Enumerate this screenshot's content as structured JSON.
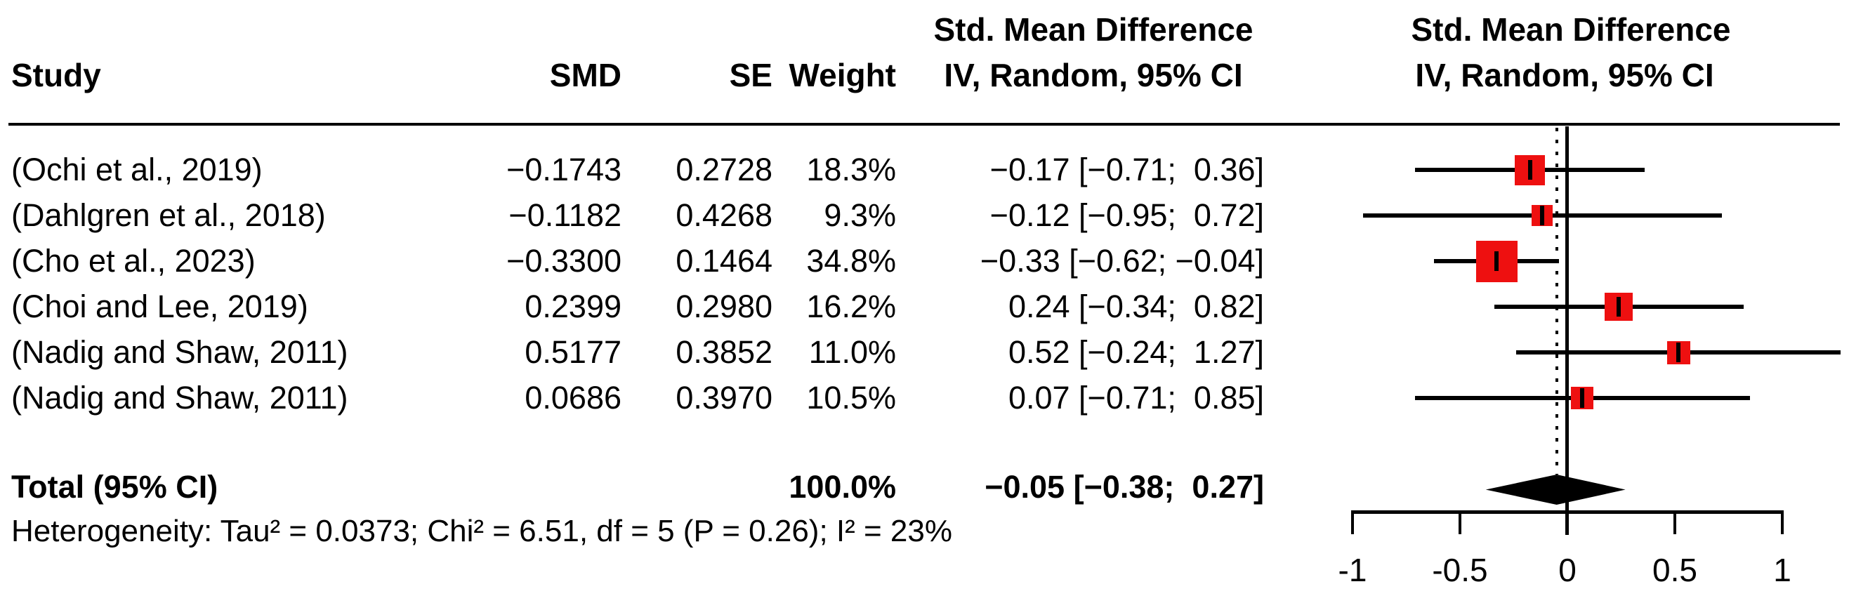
{
  "columns": {
    "study": "Study",
    "smd": "SMD",
    "se": "SE",
    "weight": "Weight",
    "ci_title": "Std. Mean Difference",
    "ci_sub": "IV, Random, 95% CI"
  },
  "plot_header": {
    "title": "Std. Mean Difference",
    "sub": "IV, Random, 95% CI"
  },
  "chart_data": {
    "type": "forest",
    "effect_measure": "Std. Mean Difference",
    "model": "IV, Random, 95% CI",
    "studies": [
      {
        "label": "(Ochi et al., 2019)",
        "smd": "−0.1743",
        "se": "0.2728",
        "weight": "18.3%",
        "ci_text": "−0.17 [−0.71;  0.36]",
        "est": -0.1743,
        "lo": -0.71,
        "hi": 0.36,
        "weight_pct": 18.3
      },
      {
        "label": "(Dahlgren et al., 2018)",
        "smd": "−0.1182",
        "se": "0.4268",
        "weight": "9.3%",
        "ci_text": "−0.12 [−0.95;  0.72]",
        "est": -0.1182,
        "lo": -0.95,
        "hi": 0.72,
        "weight_pct": 9.3
      },
      {
        "label": "(Cho et al., 2023)",
        "smd": "−0.3300",
        "se": "0.1464",
        "weight": "34.8%",
        "ci_text": "−0.33 [−0.62; −0.04]",
        "est": -0.33,
        "lo": -0.62,
        "hi": -0.04,
        "weight_pct": 34.8
      },
      {
        "label": "(Choi and Lee, 2019)",
        "smd": "0.2399",
        "se": "0.2980",
        "weight": "16.2%",
        "ci_text": "0.24 [−0.34;  0.82]",
        "est": 0.2399,
        "lo": -0.34,
        "hi": 0.82,
        "weight_pct": 16.2
      },
      {
        "label": "(Nadig and Shaw, 2011)",
        "smd": "0.5177",
        "se": "0.3852",
        "weight": "11.0%",
        "ci_text": "0.52 [−0.24;  1.27]",
        "est": 0.5177,
        "lo": -0.24,
        "hi": 1.27,
        "weight_pct": 11.0
      },
      {
        "label": "(Nadig and Shaw, 2011)",
        "smd": "0.0686",
        "se": "0.3970",
        "weight": "10.5%",
        "ci_text": "0.07 [−0.71;  0.85]",
        "est": 0.0686,
        "lo": -0.71,
        "hi": 0.85,
        "weight_pct": 10.5
      }
    ],
    "total": {
      "label": "Total (95% CI)",
      "weight": "100.0%",
      "ci_text": "−0.05 [−0.38;  0.27]",
      "est": -0.05,
      "lo": -0.38,
      "hi": 0.27
    },
    "heterogeneity": "Heterogeneity: Tau² = 0.0373; Chi² = 6.51, df = 5 (P = 0.26); I² = 23%",
    "axis": {
      "xlim": [
        -1,
        1
      ],
      "ticks": [
        -1,
        -0.5,
        0,
        0.5,
        1
      ],
      "tick_labels": [
        "-1",
        "-0.5",
        "0",
        "0.5",
        "1"
      ]
    },
    "colors": {
      "square": "#ee1010",
      "line": "#000000",
      "diamond": "#000000"
    }
  }
}
